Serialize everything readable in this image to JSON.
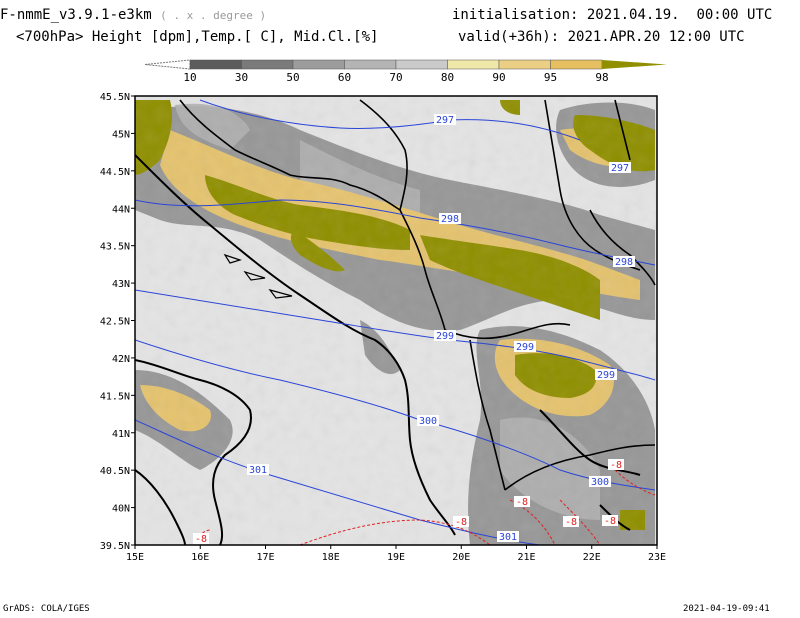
{
  "header": {
    "model_name": "F-nmmE_v3.9.1-e3km",
    "model_unit": "( . x . degree )",
    "init_label": "initialisation:",
    "init_value": "2021.04.19.  00:00 UTC",
    "params": "<700hPa> Height [dpm],Temp.[ C], Mid.Cl.[%]",
    "valid_label": "valid(+36h):",
    "valid_value": "2021.APR.20 12:00 UTC"
  },
  "colorbar": {
    "ticks": [
      "10",
      "30",
      "50",
      "60",
      "70",
      "80",
      "90",
      "95",
      "98"
    ],
    "colors": [
      "#5c5c5c",
      "#7a7a7a",
      "#9c9c9c",
      "#b4b4b4",
      "#cacaca",
      "#f0e8a8",
      "#ebcf84",
      "#e6bf60",
      "#e2b040",
      "#8f8f00"
    ]
  },
  "map": {
    "lat_labels": [
      "45.5N",
      "45N",
      "44.5N",
      "44N",
      "43.5N",
      "43N",
      "42.5N",
      "42N",
      "41.5N",
      "41N",
      "40.5N",
      "40N",
      "39.5N"
    ],
    "lon_labels": [
      "15E",
      "16E",
      "17E",
      "18E",
      "19E",
      "20E",
      "21E",
      "22E",
      "23E"
    ],
    "height_contours": [
      "297",
      "297",
      "298",
      "298",
      "299",
      "299",
      "299",
      "300",
      "300",
      "301",
      "301"
    ],
    "temp_contours": [
      "-8",
      "-8",
      "-8",
      "-8",
      "-8",
      "-8"
    ],
    "colors": {
      "background": "#e4e4e4",
      "cloud_full": "#8f8f00",
      "cloud_mid": "#e6bf60",
      "cloud_grey": "#7a7a7a",
      "height_line": "#2a45d8",
      "temp_line": "#e02020",
      "border": "#000000"
    }
  },
  "footer": {
    "left": "GrADS: COLA/IGES",
    "right": "2021-04-19-09:41"
  }
}
